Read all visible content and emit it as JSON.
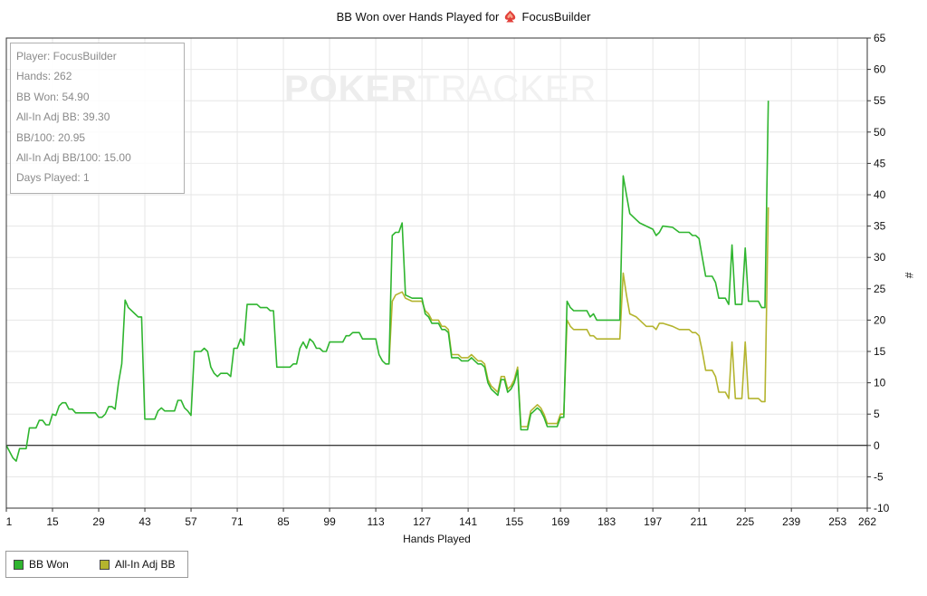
{
  "chart_data": {
    "type": "line",
    "title": "BB Won over Hands Played for",
    "title_player": "FocusBuilder",
    "xlabel": "Hands Played",
    "ylabel": "#",
    "xlim": [
      1,
      262
    ],
    "ylim": [
      -10,
      65
    ],
    "x_ticks": [
      1,
      15,
      29,
      43,
      57,
      71,
      85,
      99,
      113,
      127,
      141,
      155,
      169,
      183,
      197,
      211,
      225,
      239,
      253,
      262
    ],
    "y_ticks": [
      -10,
      -5,
      0,
      5,
      10,
      15,
      20,
      25,
      30,
      35,
      40,
      45,
      50,
      55,
      60,
      65
    ],
    "grid": true,
    "legend_position": "bottom-left",
    "series": [
      {
        "name": "BB Won",
        "color": "#2fb52f",
        "points": [
          [
            1,
            0
          ],
          [
            3,
            -2
          ],
          [
            4,
            -2.5
          ],
          [
            5,
            -0.5
          ],
          [
            7,
            -0.5
          ],
          [
            8,
            2.8
          ],
          [
            10,
            2.8
          ],
          [
            11,
            4
          ],
          [
            12,
            4
          ],
          [
            13,
            3.3
          ],
          [
            14,
            3.3
          ],
          [
            15,
            5
          ],
          [
            16,
            4.8
          ],
          [
            17,
            6.3
          ],
          [
            18,
            6.8
          ],
          [
            19,
            6.8
          ],
          [
            20,
            5.8
          ],
          [
            21,
            5.8
          ],
          [
            22,
            5.2
          ],
          [
            28,
            5.2
          ],
          [
            29,
            4.5
          ],
          [
            30,
            4.5
          ],
          [
            31,
            5
          ],
          [
            32,
            6.2
          ],
          [
            33,
            6.2
          ],
          [
            34,
            5.8
          ],
          [
            35,
            10
          ],
          [
            36,
            13
          ],
          [
            37,
            23.2
          ],
          [
            38,
            22
          ],
          [
            40,
            21
          ],
          [
            41,
            20.5
          ],
          [
            42,
            20.5
          ],
          [
            43,
            4.2
          ],
          [
            46,
            4.2
          ],
          [
            47,
            5.5
          ],
          [
            48,
            6
          ],
          [
            49,
            5.5
          ],
          [
            52,
            5.5
          ],
          [
            53,
            7.2
          ],
          [
            54,
            7.2
          ],
          [
            55,
            6
          ],
          [
            56,
            5.5
          ],
          [
            57,
            4.8
          ],
          [
            58,
            15
          ],
          [
            60,
            15
          ],
          [
            61,
            15.5
          ],
          [
            62,
            15
          ],
          [
            63,
            12.5
          ],
          [
            64,
            11.5
          ],
          [
            65,
            11
          ],
          [
            66,
            11.5
          ],
          [
            68,
            11.5
          ],
          [
            69,
            11
          ],
          [
            70,
            15.5
          ],
          [
            71,
            15.5
          ],
          [
            72,
            17
          ],
          [
            73,
            16
          ],
          [
            74,
            22.5
          ],
          [
            77,
            22.5
          ],
          [
            78,
            22
          ],
          [
            80,
            22
          ],
          [
            81,
            21.5
          ],
          [
            82,
            21.5
          ],
          [
            83,
            12.5
          ],
          [
            87,
            12.5
          ],
          [
            88,
            13
          ],
          [
            89,
            13
          ],
          [
            90,
            15.5
          ],
          [
            91,
            16.5
          ],
          [
            92,
            15.5
          ],
          [
            93,
            17
          ],
          [
            94,
            16.5
          ],
          [
            95,
            15.5
          ],
          [
            96,
            15.5
          ],
          [
            97,
            15
          ],
          [
            98,
            15
          ],
          [
            99,
            16.5
          ],
          [
            103,
            16.5
          ],
          [
            104,
            17.5
          ],
          [
            105,
            17.5
          ],
          [
            106,
            18
          ],
          [
            108,
            18
          ],
          [
            109,
            17
          ],
          [
            113,
            17
          ],
          [
            114,
            14.5
          ],
          [
            115,
            13.5
          ],
          [
            116,
            13
          ],
          [
            117,
            13
          ],
          [
            118,
            33.5
          ],
          [
            119,
            34
          ],
          [
            120,
            34
          ],
          [
            121,
            35.5
          ],
          [
            122,
            24
          ],
          [
            124,
            23.5
          ],
          [
            127,
            23.5
          ],
          [
            128,
            21
          ],
          [
            129,
            20.5
          ],
          [
            130,
            19.5
          ],
          [
            132,
            19.5
          ],
          [
            133,
            18.5
          ],
          [
            134,
            18.5
          ],
          [
            135,
            18
          ],
          [
            136,
            14
          ],
          [
            138,
            14
          ],
          [
            139,
            13.5
          ],
          [
            141,
            13.5
          ],
          [
            142,
            14
          ],
          [
            143,
            13.5
          ],
          [
            144,
            13
          ],
          [
            145,
            13
          ],
          [
            146,
            12.5
          ],
          [
            147,
            10
          ],
          [
            148,
            9
          ],
          [
            150,
            8
          ],
          [
            151,
            10.5
          ],
          [
            152,
            10.5
          ],
          [
            153,
            8.5
          ],
          [
            154,
            9
          ],
          [
            155,
            10
          ],
          [
            156,
            12
          ],
          [
            157,
            2.5
          ],
          [
            159,
            2.5
          ],
          [
            160,
            5
          ],
          [
            162,
            6
          ],
          [
            163,
            5.5
          ],
          [
            164,
            4.5
          ],
          [
            165,
            3
          ],
          [
            168,
            3
          ],
          [
            169,
            4.5
          ],
          [
            170,
            4.5
          ],
          [
            171,
            23
          ],
          [
            172,
            22
          ],
          [
            173,
            21.5
          ],
          [
            177,
            21.5
          ],
          [
            178,
            20.5
          ],
          [
            179,
            21
          ],
          [
            180,
            20
          ],
          [
            187,
            20
          ],
          [
            188,
            43
          ],
          [
            189,
            40
          ],
          [
            190,
            37
          ],
          [
            192,
            36
          ],
          [
            193,
            35.5
          ],
          [
            195,
            35
          ],
          [
            197,
            34.5
          ],
          [
            198,
            33.5
          ],
          [
            199,
            34
          ],
          [
            200,
            35
          ],
          [
            203,
            34.8
          ],
          [
            205,
            34
          ],
          [
            208,
            34
          ],
          [
            209,
            33.5
          ],
          [
            210,
            33.5
          ],
          [
            211,
            33
          ],
          [
            212,
            30
          ],
          [
            213,
            27
          ],
          [
            215,
            27
          ],
          [
            216,
            26
          ],
          [
            217,
            23.5
          ],
          [
            219,
            23.5
          ],
          [
            220,
            22.5
          ],
          [
            221,
            32
          ],
          [
            222,
            22.5
          ],
          [
            224,
            22.5
          ],
          [
            225,
            31.5
          ],
          [
            226,
            23
          ],
          [
            229,
            23
          ],
          [
            230,
            22
          ],
          [
            231,
            22
          ],
          [
            232,
            55
          ]
        ]
      },
      {
        "name": "All-In Adj BB",
        "color": "#b4b42e",
        "points": [
          [
            117,
            13
          ],
          [
            118,
            23
          ],
          [
            119,
            24
          ],
          [
            121,
            24.5
          ],
          [
            122,
            23.5
          ],
          [
            124,
            23
          ],
          [
            127,
            23
          ],
          [
            128,
            21.5
          ],
          [
            129,
            21
          ],
          [
            130,
            20
          ],
          [
            132,
            20
          ],
          [
            133,
            19
          ],
          [
            134,
            19
          ],
          [
            135,
            18.5
          ],
          [
            136,
            14.5
          ],
          [
            138,
            14.5
          ],
          [
            139,
            14
          ],
          [
            141,
            14
          ],
          [
            142,
            14.5
          ],
          [
            143,
            14
          ],
          [
            144,
            13.5
          ],
          [
            145,
            13.5
          ],
          [
            146,
            13
          ],
          [
            147,
            10.5
          ],
          [
            148,
            9.5
          ],
          [
            150,
            8.5
          ],
          [
            151,
            11
          ],
          [
            152,
            11
          ],
          [
            153,
            9
          ],
          [
            154,
            9.5
          ],
          [
            155,
            10.5
          ],
          [
            156,
            12.5
          ],
          [
            157,
            3
          ],
          [
            159,
            3
          ],
          [
            160,
            5.5
          ],
          [
            162,
            6.5
          ],
          [
            163,
            6
          ],
          [
            164,
            5
          ],
          [
            165,
            3.5
          ],
          [
            168,
            3.5
          ],
          [
            169,
            5
          ],
          [
            170,
            5
          ],
          [
            171,
            20
          ],
          [
            172,
            19
          ],
          [
            173,
            18.5
          ],
          [
            177,
            18.5
          ],
          [
            178,
            17.5
          ],
          [
            179,
            17.5
          ],
          [
            180,
            17
          ],
          [
            187,
            17
          ],
          [
            188,
            27.5
          ],
          [
            189,
            24
          ],
          [
            190,
            21
          ],
          [
            192,
            20.5
          ],
          [
            193,
            20
          ],
          [
            195,
            19
          ],
          [
            197,
            19
          ],
          [
            198,
            18.5
          ],
          [
            199,
            19.5
          ],
          [
            200,
            19.5
          ],
          [
            203,
            19
          ],
          [
            205,
            18.5
          ],
          [
            208,
            18.5
          ],
          [
            209,
            18
          ],
          [
            210,
            18
          ],
          [
            211,
            17.5
          ],
          [
            212,
            15
          ],
          [
            213,
            12
          ],
          [
            215,
            12
          ],
          [
            216,
            11
          ],
          [
            217,
            8.5
          ],
          [
            219,
            8.5
          ],
          [
            220,
            7.5
          ],
          [
            221,
            16.5
          ],
          [
            222,
            7.5
          ],
          [
            224,
            7.5
          ],
          [
            225,
            16.5
          ],
          [
            226,
            7.5
          ],
          [
            229,
            7.5
          ],
          [
            230,
            7
          ],
          [
            231,
            7
          ],
          [
            232,
            38
          ]
        ]
      }
    ],
    "stats": [
      "Player: FocusBuilder",
      "Hands: 262",
      "BB Won: 54.90",
      "All-In Adj BB: 39.30",
      "BB/100: 20.95",
      "All-In Adj BB/100: 15.00",
      "Days Played: 1"
    ],
    "watermark": {
      "bold": "POKER",
      "light": "TRACKER"
    }
  }
}
